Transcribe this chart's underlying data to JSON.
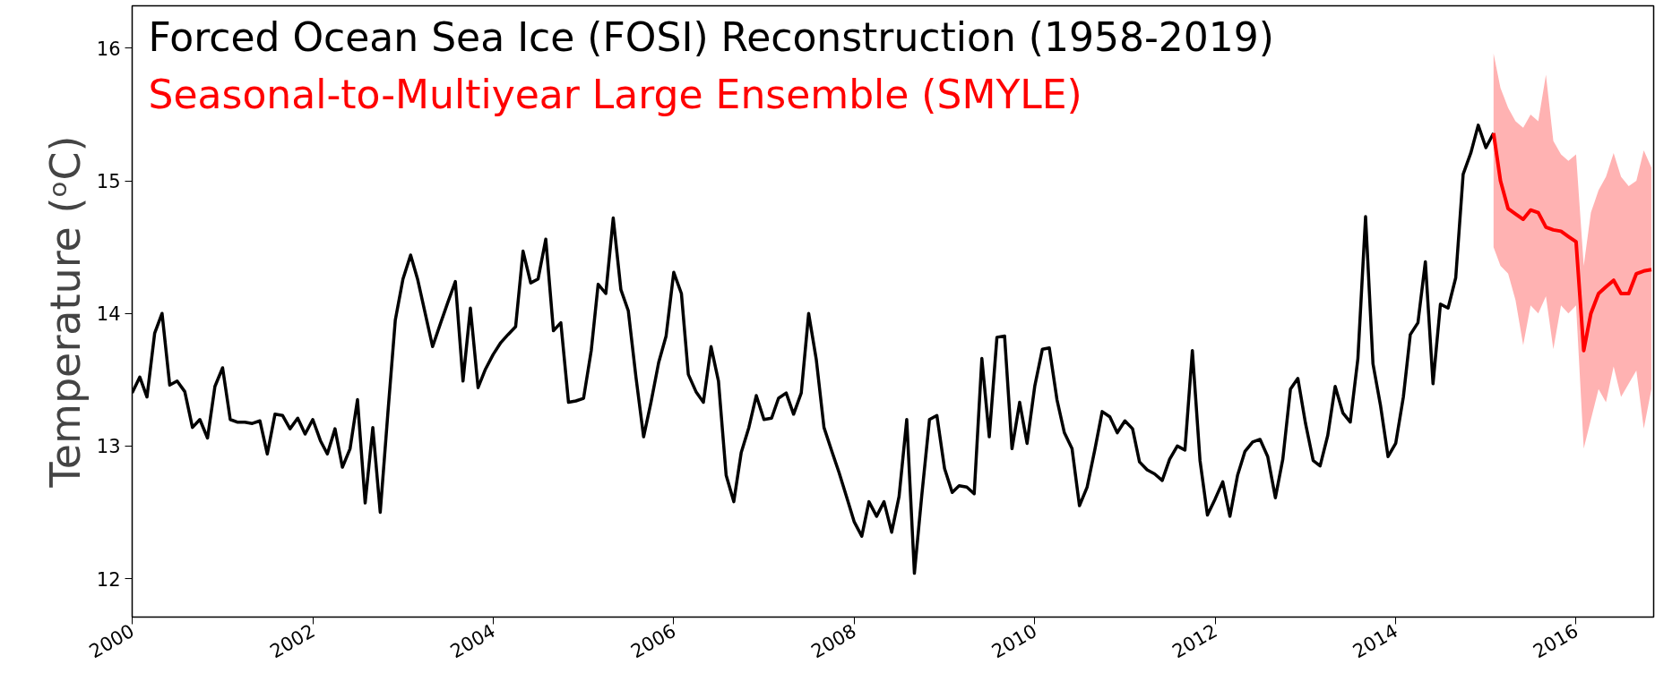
{
  "chart_data": {
    "type": "line",
    "ylabel": "Temperature (ᵒC)",
    "xlim": [
      "2000-01-01",
      "2016-11-10"
    ],
    "xticks": [
      "2000",
      "2002",
      "2004",
      "2006",
      "2008",
      "2010",
      "2012",
      "2014",
      "2016"
    ],
    "ylim": [
      11.71,
      16.32
    ],
    "yticks": [
      12,
      13,
      14,
      15,
      16
    ],
    "grid": false,
    "legend": "top left",
    "series": [
      {
        "name": "Forced Ocean Sea Ice (FOSI) Reconstruction (1958-2019)",
        "color": "#000000",
        "x": [
          "2000-01",
          "2000-02",
          "2000-03",
          "2000-04",
          "2000-05",
          "2000-06",
          "2000-07",
          "2000-08",
          "2000-09",
          "2000-10",
          "2000-11",
          "2000-12",
          "2001-01",
          "2001-02",
          "2001-03",
          "2001-04",
          "2001-05",
          "2001-06",
          "2001-07",
          "2001-08",
          "2001-09",
          "2001-10",
          "2001-11",
          "2001-12",
          "2002-01",
          "2002-02",
          "2002-03",
          "2002-04",
          "2002-05",
          "2002-06",
          "2002-07",
          "2002-08",
          "2002-09",
          "2002-10",
          "2002-11",
          "2002-12",
          "2003-01",
          "2003-02",
          "2003-03",
          "2003-04",
          "2003-05",
          "2003-06",
          "2003-07",
          "2003-08",
          "2003-09",
          "2003-10",
          "2003-11",
          "2003-12",
          "2004-01",
          "2004-02",
          "2004-03",
          "2004-04",
          "2004-05",
          "2004-06",
          "2004-07",
          "2004-08",
          "2004-09",
          "2004-10",
          "2004-11",
          "2004-12",
          "2005-01",
          "2005-02",
          "2005-03",
          "2005-04",
          "2005-05",
          "2005-06",
          "2005-07",
          "2005-08",
          "2005-09",
          "2005-10",
          "2005-11",
          "2005-12",
          "2006-01",
          "2006-02",
          "2006-03",
          "2006-04",
          "2006-05",
          "2006-06",
          "2006-07",
          "2006-08",
          "2006-09",
          "2006-10",
          "2006-11",
          "2006-12",
          "2007-01",
          "2007-02",
          "2007-03",
          "2007-04",
          "2007-05",
          "2007-06",
          "2007-07",
          "2007-08",
          "2007-09",
          "2007-10",
          "2007-11",
          "2007-12",
          "2008-01",
          "2008-02",
          "2008-03",
          "2008-04",
          "2008-05",
          "2008-06",
          "2008-07",
          "2008-08",
          "2008-09",
          "2008-10",
          "2008-11",
          "2008-12",
          "2009-01",
          "2009-02",
          "2009-03",
          "2009-04",
          "2009-05",
          "2009-06",
          "2009-07",
          "2009-08",
          "2009-09",
          "2009-10",
          "2009-11",
          "2009-12",
          "2010-01",
          "2010-02",
          "2010-03",
          "2010-04",
          "2010-05",
          "2010-06",
          "2010-07",
          "2010-08",
          "2010-09",
          "2010-10",
          "2010-11",
          "2010-12",
          "2011-01",
          "2011-02",
          "2011-03",
          "2011-04",
          "2011-05",
          "2011-06",
          "2011-07",
          "2011-08",
          "2011-09",
          "2011-10",
          "2011-11",
          "2011-12",
          "2012-01",
          "2012-02",
          "2012-03",
          "2012-04",
          "2012-05",
          "2012-06",
          "2012-07",
          "2012-08",
          "2012-09",
          "2012-10",
          "2012-11",
          "2012-12",
          "2013-01",
          "2013-02",
          "2013-03",
          "2013-04",
          "2013-05",
          "2013-06",
          "2013-07",
          "2013-08",
          "2013-09",
          "2013-10",
          "2013-11",
          "2013-12",
          "2014-01",
          "2014-02",
          "2014-03",
          "2014-04",
          "2014-05",
          "2014-06",
          "2014-07",
          "2014-08",
          "2014-09",
          "2014-10",
          "2014-11",
          "2014-12",
          "2015-01",
          "2015-02"
        ],
        "values": [
          13.4,
          13.52,
          13.37,
          13.85,
          14.0,
          13.46,
          13.49,
          13.41,
          13.14,
          13.2,
          13.06,
          13.45,
          13.59,
          13.2,
          13.18,
          13.18,
          13.17,
          13.19,
          12.94,
          13.24,
          13.23,
          13.13,
          13.21,
          13.09,
          13.2,
          13.04,
          12.94,
          13.13,
          12.84,
          12.98,
          13.35,
          12.57,
          13.14,
          12.5,
          13.25,
          13.95,
          14.26,
          14.44,
          14.26,
          14.0,
          13.75,
          13.92,
          14.08,
          14.24,
          13.49,
          14.04,
          13.44,
          13.58,
          13.69,
          13.78,
          13.84,
          13.9,
          14.47,
          14.23,
          14.26,
          14.56,
          13.87,
          13.93,
          13.33,
          13.34,
          13.36,
          13.72,
          14.22,
          14.15,
          14.72,
          14.18,
          14.02,
          13.52,
          13.07,
          13.33,
          13.63,
          13.83,
          14.31,
          14.15,
          13.54,
          13.41,
          13.33,
          13.75,
          13.49,
          12.78,
          12.58,
          12.95,
          13.14,
          13.38,
          13.2,
          13.21,
          13.36,
          13.4,
          13.24,
          13.4,
          14.0,
          13.65,
          13.14,
          12.97,
          12.8,
          12.62,
          12.43,
          12.32,
          12.58,
          12.47,
          12.58,
          12.35,
          12.62,
          13.2,
          12.04,
          12.63,
          13.2,
          13.23,
          12.83,
          12.65,
          12.7,
          12.69,
          12.64,
          13.66,
          13.07,
          13.82,
          13.83,
          12.98,
          13.33,
          13.02,
          13.45,
          13.73,
          13.74,
          13.35,
          13.1,
          12.98,
          12.55,
          12.69,
          12.97,
          13.26,
          13.22,
          13.1,
          13.19,
          13.13,
          12.88,
          12.82,
          12.79,
          12.74,
          12.9,
          13.0,
          12.97,
          13.72,
          12.89,
          12.48,
          12.6,
          12.73,
          12.47,
          12.78,
          12.96,
          13.03,
          13.05,
          12.92,
          12.61,
          12.9,
          13.43,
          13.51,
          13.17,
          12.89,
          12.85,
          13.08,
          13.45,
          13.25,
          13.18,
          13.66,
          14.73,
          13.62,
          13.3,
          12.92,
          13.02,
          13.37,
          13.84,
          13.93,
          14.39,
          13.47,
          14.07,
          14.04,
          14.27,
          15.05,
          15.21,
          15.42,
          15.25,
          15.36
        ]
      },
      {
        "name": "Seasonal-to-Multiyear Large Ensemble (SMYLE)",
        "color": "#ff0000",
        "x": [
          "2015-02",
          "2015-03",
          "2015-04",
          "2015-05",
          "2015-06",
          "2015-07",
          "2015-08",
          "2015-09",
          "2015-10",
          "2015-11",
          "2015-12",
          "2016-01",
          "2016-02",
          "2016-03",
          "2016-04",
          "2016-05",
          "2016-06",
          "2016-07",
          "2016-08",
          "2016-09",
          "2016-10",
          "2016-11"
        ],
        "values": [
          15.36,
          15.0,
          14.79,
          14.75,
          14.71,
          14.78,
          14.76,
          14.65,
          14.63,
          14.62,
          14.58,
          14.54,
          13.72,
          14.0,
          14.15,
          14.2,
          14.25,
          14.15,
          14.15,
          14.3,
          14.32,
          14.33
        ],
        "lower": [
          14.5,
          14.36,
          14.3,
          14.1,
          13.76,
          14.06,
          14.0,
          14.13,
          13.73,
          14.06,
          14.0,
          14.06,
          12.98,
          13.2,
          13.43,
          13.33,
          13.6,
          13.37,
          13.47,
          13.57,
          13.13,
          13.43
        ],
        "upper": [
          15.96,
          15.7,
          15.55,
          15.45,
          15.4,
          15.5,
          15.45,
          15.8,
          15.3,
          15.2,
          15.15,
          15.2,
          14.36,
          14.76,
          14.93,
          15.03,
          15.21,
          15.03,
          14.96,
          15.0,
          15.23,
          15.1
        ]
      }
    ]
  }
}
